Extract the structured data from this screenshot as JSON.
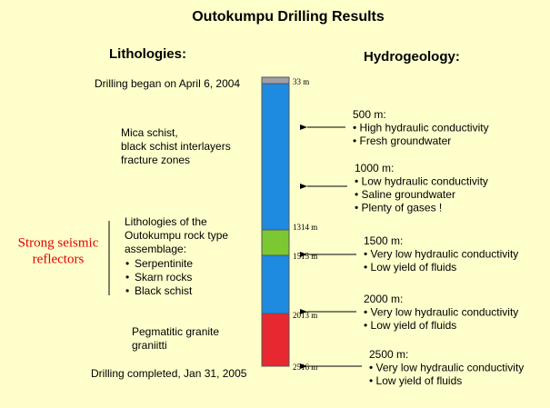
{
  "title": "Outokumpu Drilling Results",
  "lithologies": {
    "heading": "Lithologies:",
    "start": "Drilling began on April 6, 2004",
    "mica": [
      "Mica schist,",
      "black schist interlayers",
      "fracture zones"
    ],
    "assemblage": [
      "Lithologies of the",
      "Outokumpu rock type",
      "assemblage:"
    ],
    "bullets": [
      "Serpentinite",
      "Skarn rocks",
      "Black schist"
    ],
    "seismic": [
      "Strong seismic",
      "reflectors"
    ],
    "granite": [
      "Pegmatitic granite",
      "graniitti"
    ],
    "end": "Drilling completed, Jan 31, 2005"
  },
  "depths": [
    "33 m",
    "1314 m",
    "1515 m",
    "2013 m",
    "2516 m"
  ],
  "hydrogeology": {
    "heading": "Hydrogeology:",
    "notes": [
      {
        "depth": "500 m:",
        "lines": [
          "• High hydraulic conductivity",
          "• Fresh groundwater"
        ]
      },
      {
        "depth": "1000 m:",
        "lines": [
          "• Low hydraulic conductivity",
          "• Saline groundwater",
          "• Plenty of gases !"
        ]
      },
      {
        "depth": "1500 m:",
        "lines": [
          "• Very low hydraulic conductivity",
          "• Low yield of fluids"
        ]
      },
      {
        "depth": "2000 m:",
        "lines": [
          "• Very low hydraulic conductivity",
          "• Low yield of fluids"
        ]
      },
      {
        "depth": "2500 m:",
        "lines": [
          "• Very low hydraulic conductivity",
          "• Low yield of fluids"
        ]
      }
    ]
  }
}
